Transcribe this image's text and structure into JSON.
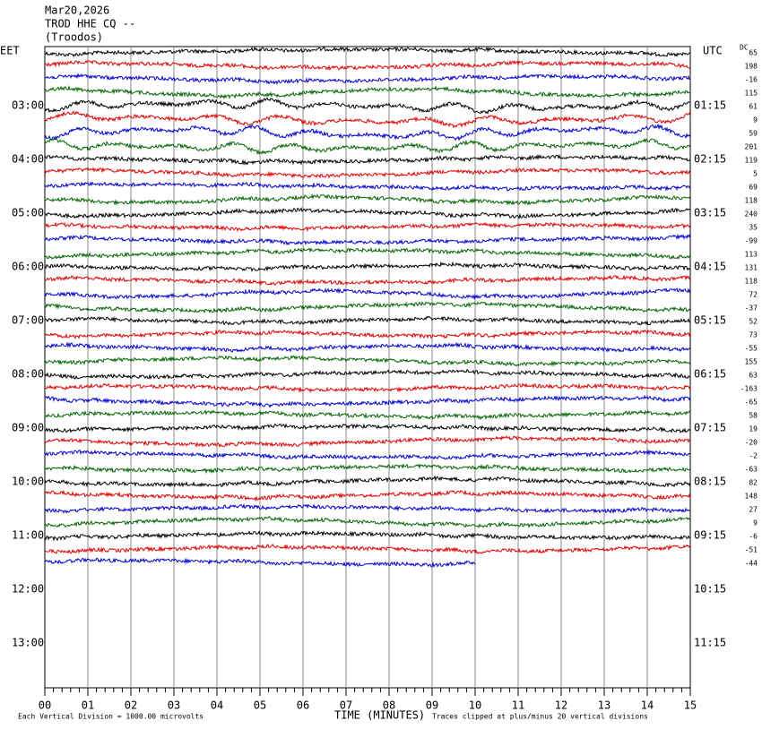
{
  "header": {
    "date": "Mar20,2026",
    "station": "TROD HHE CQ --",
    "location": "(Troodos)"
  },
  "left_axis": {
    "title": "EET",
    "labels": [
      "03:00",
      "04:00",
      "05:00",
      "06:00",
      "07:00",
      "08:00",
      "09:00",
      "10:00",
      "11:00",
      "12:00",
      "13:00"
    ]
  },
  "right_axis": {
    "title": "UTC",
    "labels": [
      "01:15",
      "02:15",
      "03:15",
      "04:15",
      "05:15",
      "06:15",
      "07:15",
      "08:15",
      "09:15",
      "10:15",
      "11:15"
    ]
  },
  "dc": {
    "title": "DC",
    "values": [
      "65",
      "198",
      "-16",
      "115",
      "61",
      "9",
      "59",
      "201",
      "119",
      "5",
      "69",
      "118",
      "240",
      "35",
      "-99",
      "113",
      "131",
      "118",
      "72",
      "-37",
      "52",
      "73",
      "-55",
      "155",
      "63",
      "-163",
      "-65",
      "58",
      "19",
      "-20",
      "-2",
      "-63",
      "82",
      "148",
      "27",
      "9",
      "-6",
      "-51",
      "-44"
    ]
  },
  "x_axis": {
    "title": "TIME (MINUTES)",
    "labels": [
      "00",
      "01",
      "02",
      "03",
      "04",
      "05",
      "06",
      "07",
      "08",
      "09",
      "10",
      "11",
      "12",
      "13",
      "14",
      "15"
    ]
  },
  "footer": {
    "scale": "Each Vertical Division = 1000.00 microvolts",
    "clip": "Traces clipped at plus/minus 20 vertical divisions"
  }
}
